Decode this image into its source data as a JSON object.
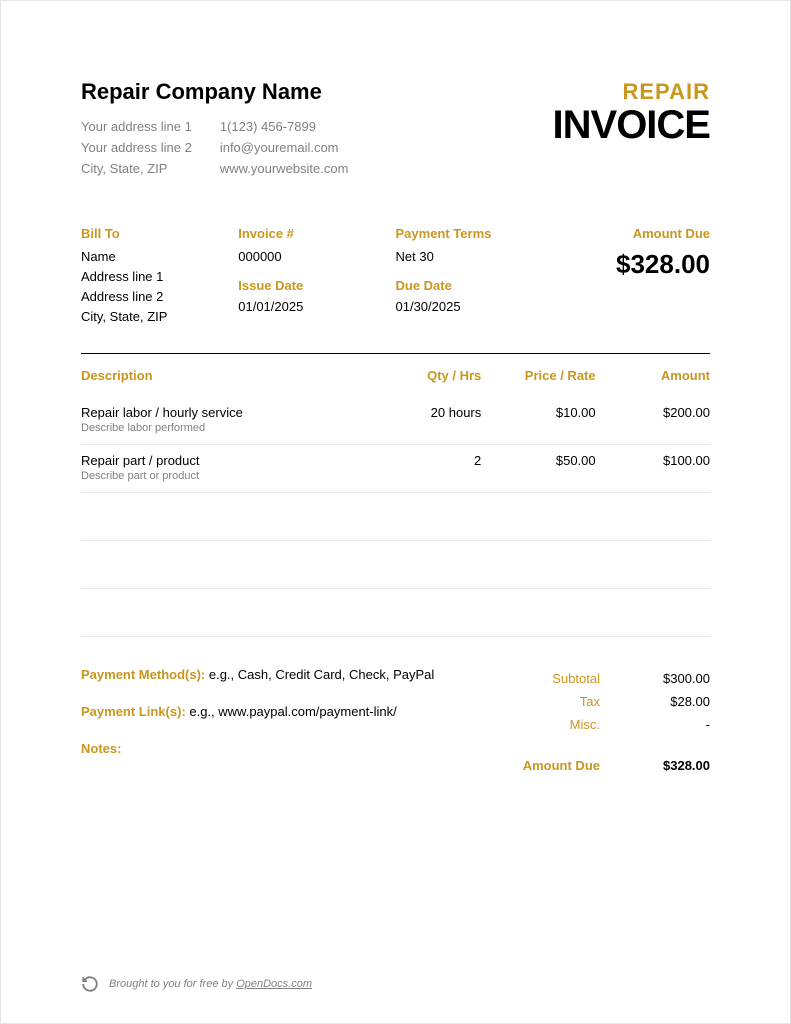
{
  "colors": {
    "accent": "#c9971e",
    "text": "#000000",
    "muted": "#808080",
    "border_light": "#e8e8e8",
    "border_dark": "#000000",
    "background": "#ffffff"
  },
  "company": {
    "name": "Repair Company Name",
    "address_line_1": "Your address line 1",
    "address_line_2": "Your address line 2",
    "city_state_zip": "City, State, ZIP",
    "phone": "1(123) 456-7899",
    "email": "info@youremail.com",
    "website": "www.yourwebsite.com"
  },
  "title": {
    "repair": "REPAIR",
    "invoice": "INVOICE"
  },
  "meta": {
    "bill_to_heading": "Bill To",
    "bill_to": {
      "name": "Name",
      "address_line_1": "Address line 1",
      "address_line_2": "Address line 2",
      "city_state_zip": "City, State, ZIP"
    },
    "invoice_num_heading": "Invoice #",
    "invoice_num": "000000",
    "issue_date_heading": "Issue Date",
    "issue_date": "01/01/2025",
    "payment_terms_heading": "Payment Terms",
    "payment_terms": "Net 30",
    "due_date_heading": "Due Date",
    "due_date": "01/30/2025",
    "amount_due_heading": "Amount Due",
    "amount_due": "$328.00"
  },
  "table": {
    "headers": {
      "description": "Description",
      "qty": "Qty / Hrs",
      "price": "Price / Rate",
      "amount": "Amount"
    },
    "rows": [
      {
        "title": "Repair labor / hourly service",
        "subtitle": "Describe labor performed",
        "qty": "20 hours",
        "price": "$10.00",
        "amount": "$200.00"
      },
      {
        "title": "Repair part / product",
        "subtitle": "Describe part or product",
        "qty": "2",
        "price": "$50.00",
        "amount": "$100.00"
      }
    ],
    "empty_rows": 3
  },
  "payment": {
    "method_label": "Payment Method(s):",
    "method_value": " e.g., Cash, Credit Card, Check, PayPal",
    "link_label": "Payment Link(s):",
    "link_value": " e.g., www.paypal.com/payment-link/",
    "notes_label": "Notes:"
  },
  "totals": {
    "subtotal_label": "Subtotal",
    "subtotal": "$300.00",
    "tax_label": "Tax",
    "tax": "$28.00",
    "misc_label": "Misc.",
    "misc": "-",
    "amount_due_label": "Amount Due",
    "amount_due": "$328.00"
  },
  "footer": {
    "text": "Brought to you for free by ",
    "link_text": "OpenDocs.com"
  }
}
